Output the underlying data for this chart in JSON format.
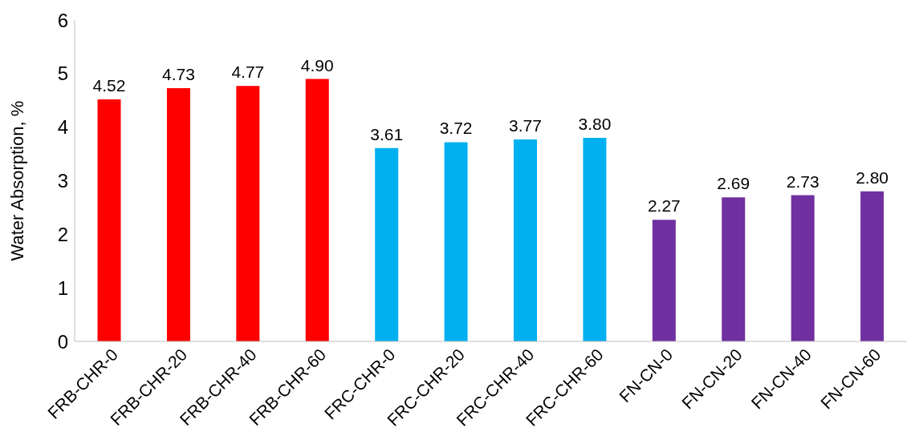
{
  "chart_data": {
    "type": "bar",
    "ylabel": "Water Absorption, %",
    "categories": [
      "FRB-CHR-0",
      "FRB-CHR-20",
      "FRB-CHR-40",
      "FRB-CHR-60",
      "FRC-CHR-0",
      "FRC-CHR-20",
      "FRC-CHR-40",
      "FRC-CHR-60",
      "FN-CN-0",
      "FN-CN-20",
      "FN-CN-40",
      "FN-CN-60"
    ],
    "values": [
      4.52,
      4.73,
      4.77,
      4.9,
      3.61,
      3.72,
      3.77,
      3.8,
      2.27,
      2.69,
      2.73,
      2.8
    ],
    "value_labels": [
      "4.52",
      "4.73",
      "4.77",
      "4.90",
      "3.61",
      "3.72",
      "3.77",
      "3.80",
      "2.27",
      "2.69",
      "2.73",
      "2.80"
    ],
    "colors": [
      "#ff0000",
      "#ff0000",
      "#ff0000",
      "#ff0000",
      "#00b0f0",
      "#00b0f0",
      "#00b0f0",
      "#00b0f0",
      "#7030a0",
      "#7030a0",
      "#7030a0",
      "#7030a0"
    ],
    "ylim": [
      0,
      6
    ],
    "yticks": [
      0,
      1,
      2,
      3,
      4,
      5,
      6
    ],
    "grid": false,
    "legend": false
  }
}
